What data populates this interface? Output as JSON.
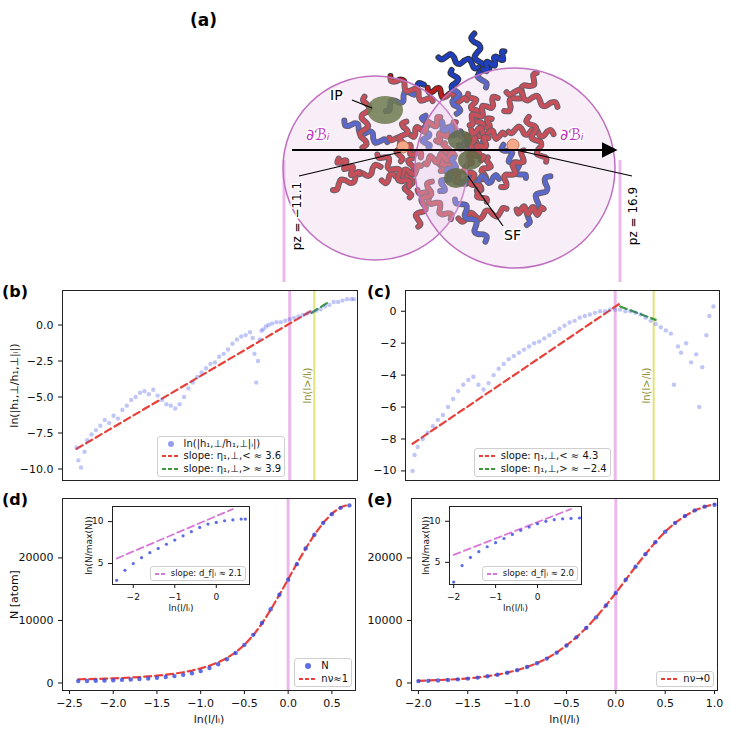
{
  "figure_a": {
    "panel": "(a)",
    "labels": {
      "ip": "IP",
      "sf": "SF",
      "boundary_left": "∂ℬᵢ",
      "boundary_right": "∂ℬᵢ",
      "pz_left": "pz = −11.1",
      "pz_right": "pz = 16.9"
    }
  },
  "chart_data": [
    {
      "panel": "(b)",
      "type": "scatter",
      "xlim": [
        -2.58,
        0.77
      ],
      "ylim": [
        -10.8,
        2.4
      ],
      "yticks": [
        {
          "value": -10,
          "label": "−10.0"
        },
        {
          "value": -7.5,
          "label": "−7.5"
        },
        {
          "value": -5,
          "label": "−5.0"
        },
        {
          "value": -2.5,
          "label": "−2.5"
        },
        {
          "value": 0,
          "label": "0.0"
        }
      ],
      "tick_labels": "y",
      "y_label": "ln(|h₁,⊥/h₁,⊥|ᵢ|)",
      "legend": "lower center",
      "series": [
        {
          "name": "ln(|h₁,⊥/h₁,⊥|ᵢ|)",
          "type": "scatter",
          "marker": "circle",
          "color": "#4b5de4",
          "x": [
            -2.42,
            -2.4,
            -2.37,
            -2.33,
            -2.3,
            -2.25,
            -2.2,
            -2.15,
            -2.1,
            -2.05,
            -2.0,
            -1.95,
            -1.9,
            -1.85,
            -1.8,
            -1.75,
            -1.7,
            -1.65,
            -1.6,
            -1.55,
            -1.5,
            -1.45,
            -1.4,
            -1.35,
            -1.3,
            -1.25,
            -1.2,
            -1.15,
            -1.1,
            -1.05,
            -1.0,
            -0.95,
            -0.9,
            -0.85,
            -0.8,
            -0.75,
            -0.7,
            -0.65,
            -0.6,
            -0.55,
            -0.5,
            -0.45,
            -0.42,
            -0.4,
            -0.38,
            -0.36,
            -0.34,
            -0.32,
            -0.3,
            -0.27,
            -0.24,
            -0.2,
            -0.15,
            -0.1,
            -0.05,
            0,
            0.05,
            0.1,
            0.15,
            0.2,
            0.25,
            0.3,
            0.35,
            0.4,
            0.45,
            0.5,
            0.55,
            0.6,
            0.65,
            0.7,
            0.73
          ],
          "values": [
            -8.5,
            -9.4,
            -9.9,
            -8.8,
            -8.0,
            -7.6,
            -7.3,
            -7.0,
            -6.6,
            -6.8,
            -6.3,
            -6.5,
            -5.9,
            -5.6,
            -5.2,
            -5.0,
            -4.7,
            -4.6,
            -4.8,
            -4.5,
            -4.9,
            -5.2,
            -5.5,
            -5.6,
            -5.8,
            -5.5,
            -5.0,
            -4.4,
            -4.0,
            -3.6,
            -3.3,
            -3.0,
            -2.7,
            -2.6,
            -2.2,
            -2.0,
            -1.7,
            -1.3,
            -1.0,
            -0.8,
            -0.7,
            -0.5,
            -0.9,
            -2.0,
            -4.0,
            -2.5,
            -1.0,
            -0.4,
            -0.3,
            -0.1,
            0,
            0.1,
            0.2,
            0.2,
            0.3,
            0.4,
            0.5,
            0.6,
            0.7,
            0.8,
            0.9,
            1.0,
            1.1,
            1.3,
            1.4,
            1.6,
            1.6,
            1.7,
            1.8,
            1.8,
            1.8
          ]
        },
        {
          "name": "slope: η₁,⊥,< ≈ 3.6",
          "type": "line",
          "line_style": "dashed",
          "color": "#e8413a",
          "x": [
            -2.42,
            0.25
          ],
          "values": [
            -8.6,
            1.0
          ]
        },
        {
          "name": "slope: η₁,⊥,> ≈ 3.9",
          "type": "line",
          "line_style": "dashed",
          "color": "#3a9a3a",
          "x": [
            0.25,
            0.45
          ],
          "values": [
            0.85,
            1.63
          ]
        }
      ],
      "vlines": [
        {
          "x": 0,
          "color": "#ecb8ec"
        },
        {
          "x": 0.28,
          "color": "#e2e27a",
          "label": "ln(l>/lᵢ)"
        }
      ]
    },
    {
      "panel": "(c)",
      "type": "scatter",
      "xlim": [
        -2.07,
        1.03
      ],
      "ylim": [
        -10.6,
        1.3
      ],
      "yticks": [
        {
          "value": -10,
          "label": "−10"
        },
        {
          "value": -8,
          "label": "−8"
        },
        {
          "value": -6,
          "label": "−6"
        },
        {
          "value": -4,
          "label": "−4"
        },
        {
          "value": -2,
          "label": "−2"
        },
        0
      ],
      "tick_labels": "y",
      "legend": "lower center",
      "series": [
        {
          "type": "scatter",
          "marker": "circle",
          "color": "#4b5de4",
          "x": [
            -2.0,
            -1.98,
            -1.95,
            -1.9,
            -1.85,
            -1.8,
            -1.75,
            -1.7,
            -1.65,
            -1.6,
            -1.55,
            -1.5,
            -1.45,
            -1.4,
            -1.35,
            -1.3,
            -1.25,
            -1.2,
            -1.15,
            -1.1,
            -1.05,
            -1.0,
            -0.95,
            -0.9,
            -0.85,
            -0.8,
            -0.75,
            -0.7,
            -0.65,
            -0.6,
            -0.55,
            -0.5,
            -0.45,
            -0.4,
            -0.35,
            -0.3,
            -0.25,
            -0.2,
            -0.15,
            -0.1,
            -0.05,
            0,
            0.05,
            0.1,
            0.15,
            0.2,
            0.25,
            0.3,
            0.35,
            0.4,
            0.45,
            0.5,
            0.55,
            0.58,
            0.62,
            0.65,
            0.7,
            0.75,
            0.8,
            0.83,
            0.86,
            0.9,
            0.93,
            0.97
          ],
          "values": [
            -10.0,
            -9.0,
            -8.5,
            -8.0,
            -7.6,
            -7.2,
            -6.8,
            -6.5,
            -6.0,
            -5.5,
            -5.0,
            -4.6,
            -4.3,
            -4.1,
            -4.6,
            -4.9,
            -4.5,
            -4.0,
            -3.6,
            -3.3,
            -3.0,
            -2.8,
            -2.6,
            -2.4,
            -2.2,
            -2.0,
            -1.9,
            -1.7,
            -1.5,
            -1.3,
            -1.1,
            -0.9,
            -0.7,
            -0.6,
            -0.4,
            -0.3,
            -0.2,
            -0.1,
            0,
            0,
            0.1,
            0.1,
            0.1,
            0,
            0,
            -0.1,
            -0.2,
            -0.4,
            -0.6,
            -0.8,
            -1.0,
            -1.2,
            -1.4,
            -4.6,
            -2.2,
            -2.6,
            -2.0,
            -3.2,
            -2.7,
            -6.0,
            -3.5,
            -1.5,
            -0.3,
            0.3
          ]
        },
        {
          "name": "slope: η₁,⊥,< ≈ 4.3",
          "type": "line",
          "line_style": "dashed",
          "color": "#e8413a",
          "x": [
            -2.0,
            0.05
          ],
          "values": [
            -8.3,
            0.5
          ]
        },
        {
          "name": "slope: η₁,⊥,> ≈ −2.4",
          "type": "line",
          "line_style": "dashed",
          "color": "#3a9a3a",
          "x": [
            0.05,
            0.4
          ],
          "values": [
            0.3,
            -0.54
          ]
        }
      ],
      "vlines": [
        {
          "x": 0,
          "color": "#ecb8ec"
        },
        {
          "x": 0.38,
          "color": "#e2e27a",
          "label": "ln(l>/lᵢ)"
        }
      ]
    },
    {
      "panel": "(d)",
      "type": "scatter",
      "xlim": [
        -2.58,
        0.77
      ],
      "ylim": [
        -1200,
        29500
      ],
      "xticks": [
        {
          "value": -2.5,
          "label": "−2.5"
        },
        {
          "value": -2,
          "label": "−2.0"
        },
        {
          "value": -1.5,
          "label": "−1.5"
        },
        {
          "value": -1,
          "label": "−1.0"
        },
        {
          "value": -0.5,
          "label": "−0.5"
        },
        {
          "value": 0,
          "label": "0.0"
        },
        0.5
      ],
      "yticks": [
        0,
        10000,
        20000
      ],
      "x_label": "ln(l/lᵢ)",
      "y_label": "N [atom]",
      "legend": "lower right",
      "series": [
        {
          "name": "N",
          "type": "scatter",
          "marker": "circle",
          "color": "#3348e0",
          "x": [
            -2.4,
            -2.3,
            -2.2,
            -2.1,
            -2.0,
            -1.9,
            -1.8,
            -1.7,
            -1.6,
            -1.5,
            -1.4,
            -1.3,
            -1.2,
            -1.1,
            -1.0,
            -0.9,
            -0.8,
            -0.7,
            -0.6,
            -0.5,
            -0.4,
            -0.3,
            -0.2,
            -0.1,
            0,
            0.1,
            0.2,
            0.3,
            0.4,
            0.5,
            0.6,
            0.7
          ],
          "values": [
            300,
            330,
            360,
            400,
            450,
            500,
            560,
            630,
            720,
            820,
            950,
            1100,
            1300,
            1550,
            1900,
            2400,
            3000,
            3800,
            4800,
            6100,
            7700,
            9600,
            11800,
            14100,
            16500,
            19000,
            21500,
            23700,
            25600,
            27000,
            28000,
            28400
          ]
        },
        {
          "name": "nν≈1",
          "type": "line",
          "line_style": "dashed",
          "color": "#e8413a",
          "x": [
            -2.4,
            -2.3,
            -2.2,
            -2.1,
            -2.0,
            -1.9,
            -1.8,
            -1.7,
            -1.6,
            -1.5,
            -1.4,
            -1.3,
            -1.2,
            -1.1,
            -1.0,
            -0.9,
            -0.8,
            -0.7,
            -0.6,
            -0.5,
            -0.4,
            -0.3,
            -0.2,
            -0.1,
            0,
            0.1,
            0.2,
            0.3,
            0.4,
            0.5,
            0.6,
            0.7
          ],
          "values": [
            600,
            620,
            650,
            690,
            740,
            800,
            870,
            950,
            1050,
            1170,
            1320,
            1500,
            1720,
            1990,
            2330,
            2760,
            3300,
            4000,
            4900,
            6100,
            7600,
            9500,
            11700,
            14100,
            16600,
            19100,
            21500,
            23700,
            25600,
            27100,
            28100,
            28600
          ]
        }
      ],
      "vlines": [
        {
          "x": 0,
          "color": "#ecb8ec"
        }
      ],
      "inset": {
        "type": "scatter",
        "xlim": [
          -2.5,
          0.8
        ],
        "ylim": [
          2.5,
          11.8
        ],
        "xticks": [
          {
            "value": -2,
            "label": "−2"
          },
          {
            "value": -1,
            "label": "−1"
          },
          0
        ],
        "yticks": [
          5,
          10
        ],
        "x_label": "ln(l/lᵢ)",
        "y_label": "ln(N/max(N))",
        "legend": "lower right",
        "series": [
          {
            "type": "scatter",
            "marker": "circle",
            "color": "#3348e0",
            "x": [
              -2.4,
              -2.2,
              -2.0,
              -1.8,
              -1.6,
              -1.4,
              -1.2,
              -1.0,
              -0.8,
              -0.6,
              -0.4,
              -0.2,
              0,
              0.2,
              0.4,
              0.6,
              0.7
            ],
            "values": [
              3.0,
              4.2,
              5.0,
              5.7,
              6.3,
              6.8,
              7.3,
              7.8,
              8.3,
              8.8,
              9.3,
              9.7,
              9.9,
              10.1,
              10.2,
              10.3,
              10.3
            ]
          },
          {
            "name": "slope: d_f|ᵢ ≈ 2.1",
            "type": "line",
            "line_style": "dashed",
            "color": "#d877d8",
            "x": [
              -2.4,
              0.4
            ],
            "values": [
              5.6,
              11.5
            ]
          }
        ]
      }
    },
    {
      "panel": "(e)",
      "type": "scatter",
      "xlim": [
        -2.07,
        1.03
      ],
      "ylim": [
        -1200,
        29500
      ],
      "xticks": [
        {
          "value": -2,
          "label": "−2.0"
        },
        {
          "value": -1.5,
          "label": "−1.5"
        },
        {
          "value": -1,
          "label": "−1.0"
        },
        {
          "value": -0.5,
          "label": "−0.5"
        },
        {
          "value": 0,
          "label": "0.0"
        },
        0.5,
        {
          "value": 1,
          "label": "1.0"
        }
      ],
      "yticks": [
        0,
        10000,
        20000
      ],
      "x_label": "ln(l/lᵢ)",
      "legend": "lower right",
      "series": [
        {
          "type": "scatter",
          "marker": "circle",
          "color": "#3348e0",
          "x": [
            -2.0,
            -1.9,
            -1.8,
            -1.7,
            -1.6,
            -1.5,
            -1.4,
            -1.3,
            -1.2,
            -1.1,
            -1.0,
            -0.9,
            -0.8,
            -0.7,
            -0.6,
            -0.5,
            -0.4,
            -0.3,
            -0.2,
            -0.1,
            0,
            0.1,
            0.2,
            0.3,
            0.4,
            0.5,
            0.6,
            0.7,
            0.8,
            0.9,
            1.0
          ],
          "values": [
            300,
            340,
            400,
            480,
            580,
            700,
            860,
            1070,
            1330,
            1650,
            2050,
            2550,
            3150,
            3900,
            4850,
            6000,
            7300,
            8800,
            10500,
            12400,
            14400,
            16500,
            18600,
            20600,
            22500,
            24200,
            25600,
            26700,
            27600,
            28200,
            28500
          ]
        },
        {
          "name": "nν→0",
          "type": "line",
          "line_style": "dashed",
          "color": "#e8413a",
          "x": [
            -2.0,
            -1.9,
            -1.8,
            -1.7,
            -1.6,
            -1.5,
            -1.4,
            -1.3,
            -1.2,
            -1.1,
            -1.0,
            -0.9,
            -0.8,
            -0.7,
            -0.6,
            -0.5,
            -0.4,
            -0.3,
            -0.2,
            -0.1,
            0,
            0.1,
            0.2,
            0.3,
            0.4,
            0.5,
            0.6,
            0.7,
            0.8,
            0.9,
            1.0
          ],
          "values": [
            350,
            400,
            460,
            530,
            620,
            730,
            880,
            1080,
            1330,
            1650,
            2050,
            2550,
            3150,
            3900,
            4850,
            6000,
            7300,
            8800,
            10500,
            12400,
            14400,
            16500,
            18600,
            20600,
            22500,
            24200,
            25600,
            26700,
            27600,
            28200,
            28600
          ]
        }
      ],
      "vlines": [
        {
          "x": 0,
          "color": "#ecb8ec"
        }
      ],
      "inset": {
        "type": "scatter",
        "xlim": [
          -2.1,
          1.05
        ],
        "ylim": [
          2.3,
          11.8
        ],
        "xticks": [
          {
            "value": -2,
            "label": "−2"
          },
          {
            "value": -1,
            "label": "−1"
          },
          0
        ],
        "yticks": [
          5,
          10
        ],
        "x_label": "ln(l/lᵢ)",
        "y_label": "ln(N/max(N))",
        "legend": "lower right",
        "series": [
          {
            "type": "scatter",
            "marker": "circle",
            "color": "#3348e0",
            "x": [
              -2.0,
              -1.8,
              -1.6,
              -1.4,
              -1.2,
              -1.0,
              -0.8,
              -0.6,
              -0.4,
              -0.2,
              0,
              0.2,
              0.4,
              0.6,
              0.8,
              1.0
            ],
            "values": [
              2.6,
              4.6,
              5.6,
              6.3,
              6.9,
              7.4,
              7.9,
              8.4,
              8.9,
              9.3,
              9.7,
              10.0,
              10.2,
              10.3,
              10.35,
              10.4
            ]
          },
          {
            "name": "slope: d_f|ᵢ ≈ 2.0",
            "type": "line",
            "line_style": "dashed",
            "color": "#d877d8",
            "x": [
              -2.0,
              0.8
            ],
            "values": [
              5.9,
              11.5
            ]
          }
        ]
      }
    }
  ]
}
